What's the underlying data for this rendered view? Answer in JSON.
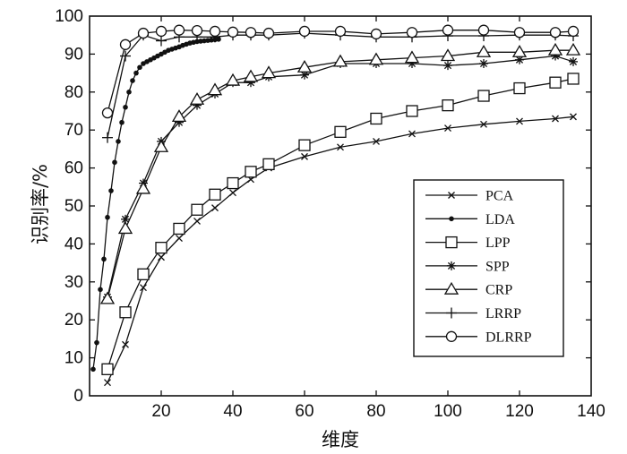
{
  "chart_data": {
    "type": "line",
    "title": "",
    "xlabel": "维度",
    "ylabel": "识别率/%",
    "xlim": [
      0,
      140
    ],
    "ylim": [
      0,
      100
    ],
    "xticks": [
      "20",
      "40",
      "60",
      "80",
      "100",
      "120",
      "140"
    ],
    "yticks": [
      "0",
      "10",
      "20",
      "30",
      "40",
      "50",
      "60",
      "70",
      "80",
      "90",
      "100"
    ],
    "legend_position": "lower-right",
    "grid": false,
    "series": [
      {
        "name": "PCA",
        "marker": "x",
        "x": [
          5,
          10,
          15,
          20,
          25,
          30,
          35,
          40,
          45,
          50,
          60,
          70,
          80,
          90,
          100,
          110,
          120,
          130,
          135
        ],
        "y": [
          3.5,
          13.5,
          28.5,
          36.5,
          41.5,
          46,
          49.5,
          53.5,
          57,
          60,
          63,
          65.5,
          67,
          69,
          70.5,
          71.5,
          72.3,
          73,
          73.5
        ]
      },
      {
        "name": "LDA",
        "marker": "dot",
        "x": [
          1,
          2,
          3,
          4,
          5,
          6,
          7,
          8,
          9,
          10,
          11,
          12,
          13,
          14,
          15,
          16,
          17,
          18,
          19,
          20,
          21,
          22,
          23,
          24,
          25,
          26,
          27,
          28,
          29,
          30,
          31,
          32,
          33,
          34,
          35,
          36
        ],
        "y": [
          7,
          14,
          28,
          36,
          47,
          54,
          61.5,
          67,
          72,
          76,
          80,
          83,
          85,
          86.5,
          87.5,
          88,
          88.5,
          89,
          89.5,
          90,
          90.5,
          91,
          91.3,
          91.6,
          91.9,
          92.3,
          92.6,
          92.9,
          93.1,
          93.3,
          93.4,
          93.5,
          93.6,
          93.7,
          93.8,
          93.9
        ]
      },
      {
        "name": "LPP",
        "marker": "square",
        "x": [
          5,
          10,
          15,
          20,
          25,
          30,
          35,
          40,
          45,
          50,
          60,
          70,
          80,
          90,
          100,
          110,
          120,
          130,
          135
        ],
        "y": [
          7,
          22,
          32,
          39,
          44,
          49,
          53,
          56,
          59,
          61,
          66,
          69.5,
          73,
          75,
          76.5,
          79,
          81,
          82.5,
          83.5
        ]
      },
      {
        "name": "SPP",
        "marker": "asterisk",
        "x": [
          5,
          10,
          15,
          20,
          25,
          30,
          35,
          40,
          45,
          50,
          60,
          70,
          80,
          90,
          100,
          110,
          120,
          130,
          135
        ],
        "y": [
          26,
          46.5,
          56,
          67,
          72,
          76.5,
          79.5,
          82.5,
          82.5,
          84,
          84.5,
          87.5,
          87.5,
          87.5,
          87,
          87.5,
          88.5,
          89.5,
          88
        ]
      },
      {
        "name": "CRP",
        "marker": "triangle",
        "x": [
          5,
          10,
          15,
          20,
          25,
          30,
          35,
          40,
          45,
          50,
          60,
          70,
          80,
          90,
          100,
          110,
          120,
          130,
          135
        ],
        "y": [
          25.5,
          44,
          54.5,
          65.5,
          73.5,
          78,
          80.5,
          83,
          84,
          85,
          86.5,
          88,
          88.5,
          89,
          89.5,
          90.5,
          90.5,
          91,
          91
        ]
      },
      {
        "name": "LRRP",
        "marker": "plus",
        "x": [
          5,
          10,
          15,
          20,
          25,
          30,
          35,
          40,
          45,
          50,
          60,
          70,
          80,
          90,
          100,
          110,
          120,
          130,
          135
        ],
        "y": [
          68,
          89.5,
          95,
          93.5,
          94.5,
          94.5,
          94.5,
          95,
          95,
          95,
          95.5,
          95,
          94.5,
          94.5,
          94.8,
          94.8,
          95,
          95,
          94.8
        ]
      },
      {
        "name": "DLRRP",
        "marker": "circle",
        "x": [
          5,
          10,
          15,
          20,
          25,
          30,
          35,
          40,
          45,
          50,
          60,
          70,
          80,
          90,
          100,
          110,
          120,
          130,
          135
        ],
        "y": [
          74.5,
          92.5,
          95.5,
          96,
          96.3,
          96.2,
          96,
          95.8,
          95.7,
          95.5,
          96,
          96,
          95.3,
          95.7,
          96.3,
          96.3,
          95.7,
          95.7,
          96
        ]
      }
    ]
  }
}
